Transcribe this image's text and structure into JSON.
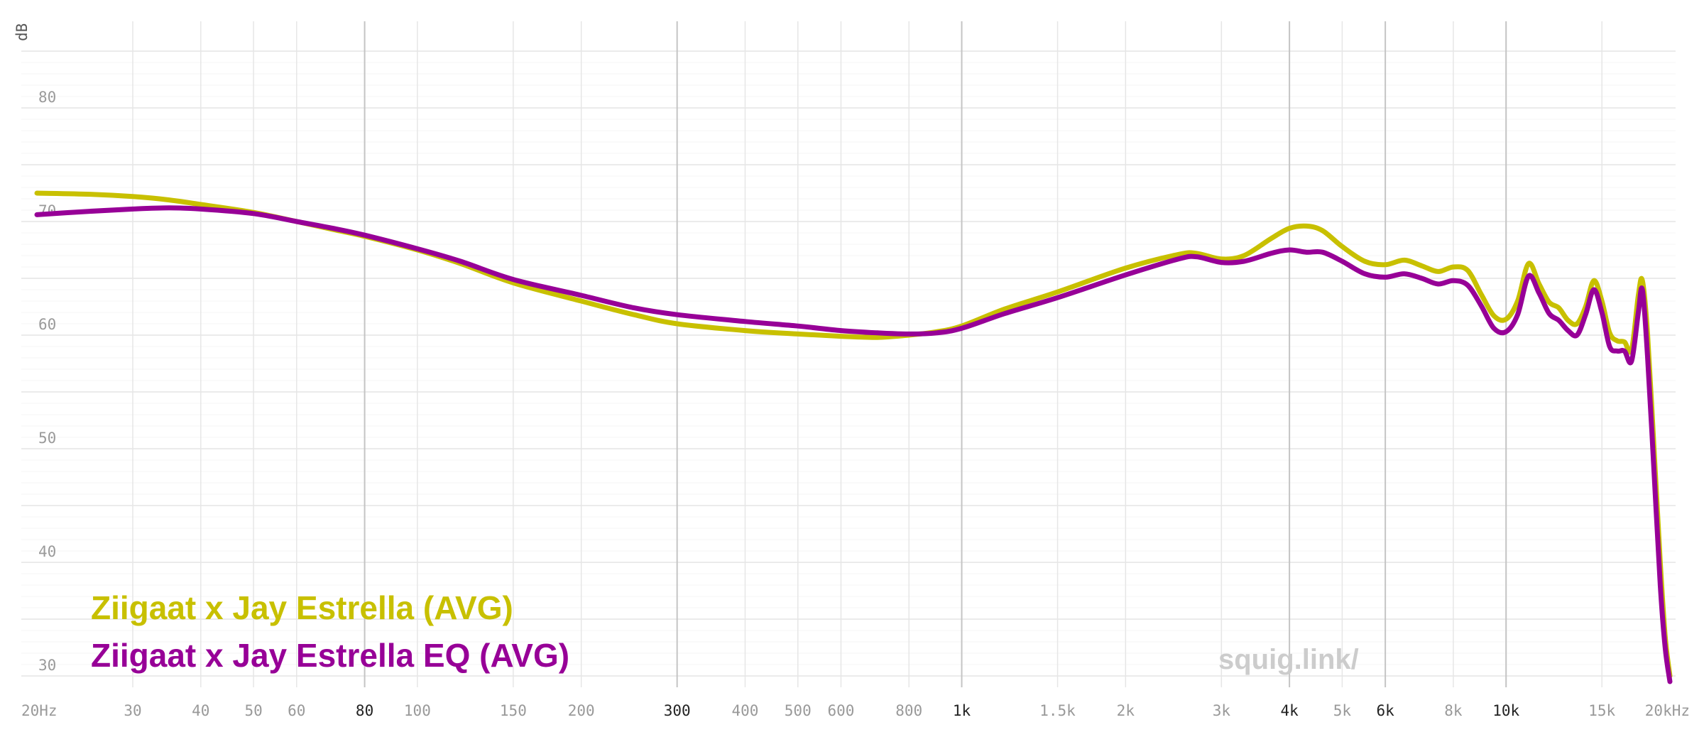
{
  "chart_data": {
    "type": "line",
    "title": "",
    "xlabel": "",
    "ylabel": "dB",
    "x_scale": "log",
    "xlim": [
      20,
      20000
    ],
    "ylim": [
      29,
      87
    ],
    "grid": true,
    "legend_position": "bottom-left",
    "watermark": "squig.link/",
    "x_ticks": [
      {
        "value": 20,
        "label": "20Hz",
        "major": false
      },
      {
        "value": 30,
        "label": "30",
        "major": false
      },
      {
        "value": 40,
        "label": "40",
        "major": false
      },
      {
        "value": 50,
        "label": "50",
        "major": false
      },
      {
        "value": 60,
        "label": "60",
        "major": false
      },
      {
        "value": 80,
        "label": "80",
        "major": true
      },
      {
        "value": 100,
        "label": "100",
        "major": false
      },
      {
        "value": 150,
        "label": "150",
        "major": false
      },
      {
        "value": 200,
        "label": "200",
        "major": false
      },
      {
        "value": 300,
        "label": "300",
        "major": true
      },
      {
        "value": 400,
        "label": "400",
        "major": false
      },
      {
        "value": 500,
        "label": "500",
        "major": false
      },
      {
        "value": 600,
        "label": "600",
        "major": false
      },
      {
        "value": 800,
        "label": "800",
        "major": false
      },
      {
        "value": 1000,
        "label": "1k",
        "major": true
      },
      {
        "value": 1500,
        "label": "1.5k",
        "major": false
      },
      {
        "value": 2000,
        "label": "2k",
        "major": false
      },
      {
        "value": 3000,
        "label": "3k",
        "major": false
      },
      {
        "value": 4000,
        "label": "4k",
        "major": true
      },
      {
        "value": 5000,
        "label": "5k",
        "major": false
      },
      {
        "value": 6000,
        "label": "6k",
        "major": true
      },
      {
        "value": 8000,
        "label": "8k",
        "major": false
      },
      {
        "value": 10000,
        "label": "10k",
        "major": true
      },
      {
        "value": 15000,
        "label": "15k",
        "major": false
      },
      {
        "value": 20000,
        "label": "20kHz",
        "major": false
      }
    ],
    "y_ticks": [
      {
        "value": 30,
        "label": "30"
      },
      {
        "value": 40,
        "label": "40"
      },
      {
        "value": 50,
        "label": "50"
      },
      {
        "value": 60,
        "label": "60"
      },
      {
        "value": 70,
        "label": "70"
      },
      {
        "value": 80,
        "label": "80"
      }
    ],
    "series": [
      {
        "name": "Ziigaat x Jay Estrella (AVG)",
        "color": "#c8c000",
        "points": [
          [
            20,
            72.5
          ],
          [
            25,
            72.4
          ],
          [
            30,
            72.2
          ],
          [
            35,
            71.9
          ],
          [
            40,
            71.5
          ],
          [
            50,
            70.8
          ],
          [
            60,
            70.0
          ],
          [
            70,
            69.3
          ],
          [
            80,
            68.7
          ],
          [
            100,
            67.5
          ],
          [
            120,
            66.3
          ],
          [
            150,
            64.6
          ],
          [
            200,
            63.0
          ],
          [
            250,
            61.8
          ],
          [
            300,
            61.0
          ],
          [
            400,
            60.4
          ],
          [
            500,
            60.1
          ],
          [
            600,
            59.9
          ],
          [
            700,
            59.8
          ],
          [
            800,
            60.0
          ],
          [
            900,
            60.3
          ],
          [
            1000,
            60.8
          ],
          [
            1200,
            62.3
          ],
          [
            1500,
            63.8
          ],
          [
            2000,
            65.9
          ],
          [
            2500,
            67.1
          ],
          [
            2700,
            67.2
          ],
          [
            3000,
            66.7
          ],
          [
            3300,
            67.0
          ],
          [
            3700,
            68.5
          ],
          [
            4000,
            69.4
          ],
          [
            4300,
            69.6
          ],
          [
            4600,
            69.2
          ],
          [
            5000,
            67.8
          ],
          [
            5500,
            66.5
          ],
          [
            6000,
            66.2
          ],
          [
            6500,
            66.6
          ],
          [
            7000,
            66.1
          ],
          [
            7500,
            65.6
          ],
          [
            8000,
            66.0
          ],
          [
            8500,
            65.7
          ],
          [
            9000,
            63.6
          ],
          [
            9500,
            61.7
          ],
          [
            10000,
            61.4
          ],
          [
            10500,
            63.0
          ],
          [
            11000,
            66.3
          ],
          [
            11500,
            64.5
          ],
          [
            12000,
            62.9
          ],
          [
            12500,
            62.4
          ],
          [
            13000,
            61.3
          ],
          [
            13500,
            61.0
          ],
          [
            14000,
            62.5
          ],
          [
            14500,
            64.8
          ],
          [
            15000,
            63.0
          ],
          [
            15500,
            60.2
          ],
          [
            16000,
            59.5
          ],
          [
            16500,
            59.4
          ],
          [
            17000,
            58.7
          ],
          [
            17500,
            63.5
          ],
          [
            17800,
            64.8
          ],
          [
            18200,
            60.0
          ],
          [
            18700,
            50.0
          ],
          [
            19200,
            40.0
          ],
          [
            19600,
            33.5
          ],
          [
            20000,
            30.0
          ]
        ]
      },
      {
        "name": "Ziigaat x Jay Estrella EQ (AVG)",
        "color": "#970097",
        "points": [
          [
            20,
            70.6
          ],
          [
            25,
            70.9
          ],
          [
            30,
            71.1
          ],
          [
            35,
            71.2
          ],
          [
            40,
            71.1
          ],
          [
            50,
            70.7
          ],
          [
            60,
            70.0
          ],
          [
            70,
            69.4
          ],
          [
            80,
            68.8
          ],
          [
            100,
            67.6
          ],
          [
            120,
            66.5
          ],
          [
            150,
            64.9
          ],
          [
            200,
            63.5
          ],
          [
            250,
            62.4
          ],
          [
            300,
            61.8
          ],
          [
            400,
            61.2
          ],
          [
            500,
            60.8
          ],
          [
            600,
            60.4
          ],
          [
            700,
            60.2
          ],
          [
            800,
            60.1
          ],
          [
            900,
            60.2
          ],
          [
            1000,
            60.6
          ],
          [
            1200,
            61.9
          ],
          [
            1500,
            63.3
          ],
          [
            2000,
            65.3
          ],
          [
            2500,
            66.7
          ],
          [
            2700,
            66.9
          ],
          [
            3000,
            66.4
          ],
          [
            3300,
            66.5
          ],
          [
            3700,
            67.2
          ],
          [
            4000,
            67.5
          ],
          [
            4300,
            67.3
          ],
          [
            4600,
            67.3
          ],
          [
            5000,
            66.5
          ],
          [
            5500,
            65.4
          ],
          [
            6000,
            65.1
          ],
          [
            6500,
            65.4
          ],
          [
            7000,
            65.0
          ],
          [
            7500,
            64.5
          ],
          [
            8000,
            64.8
          ],
          [
            8500,
            64.4
          ],
          [
            9000,
            62.6
          ],
          [
            9500,
            60.6
          ],
          [
            10000,
            60.3
          ],
          [
            10500,
            61.8
          ],
          [
            11000,
            65.2
          ],
          [
            11500,
            63.7
          ],
          [
            12000,
            61.9
          ],
          [
            12500,
            61.3
          ],
          [
            13000,
            60.4
          ],
          [
            13500,
            60.0
          ],
          [
            14000,
            61.8
          ],
          [
            14500,
            64.0
          ],
          [
            15000,
            62.0
          ],
          [
            15500,
            59.0
          ],
          [
            16000,
            58.6
          ],
          [
            16500,
            58.6
          ],
          [
            17000,
            57.7
          ],
          [
            17500,
            62.0
          ],
          [
            17800,
            64.0
          ],
          [
            18200,
            58.0
          ],
          [
            18700,
            48.0
          ],
          [
            19200,
            38.0
          ],
          [
            19600,
            32.5
          ],
          [
            20000,
            29.5
          ]
        ]
      }
    ]
  }
}
